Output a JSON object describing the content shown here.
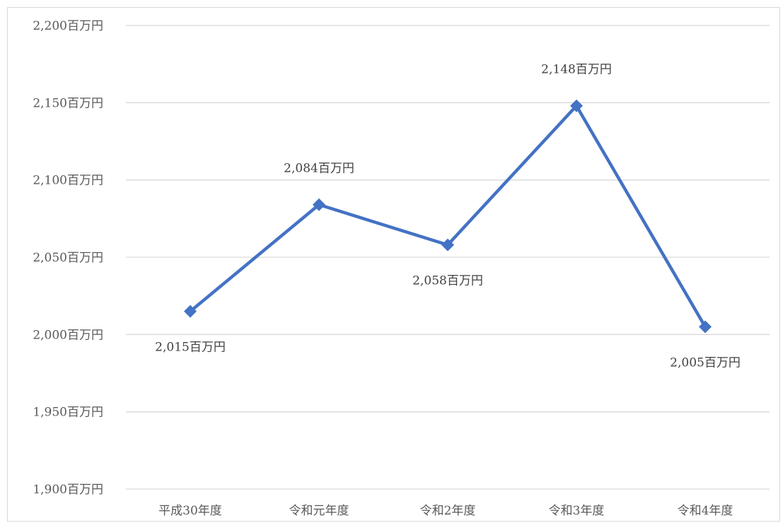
{
  "chart_data": {
    "type": "line",
    "categories": [
      "平成30年度",
      "令和元年度",
      "令和2年度",
      "令和3年度",
      "令和4年度"
    ],
    "series": [
      {
        "values": [
          2015,
          2084,
          2058,
          2148,
          2005
        ],
        "data_labels": [
          "2,015百万円",
          "2,084百万円",
          "2,058百万円",
          "2,148百万円",
          "2,005百万円"
        ],
        "label_positions": [
          "below",
          "above",
          "below",
          "above",
          "below"
        ],
        "color": "#4472c4",
        "marker": "diamond"
      }
    ],
    "ylim": [
      1900,
      2200
    ],
    "y_ticks": [
      {
        "value": 2200,
        "label": "2,200百万円"
      },
      {
        "value": 2150,
        "label": "2,150百万円"
      },
      {
        "value": 2100,
        "label": "2,100百万円"
      },
      {
        "value": 2050,
        "label": "2,050百万円"
      },
      {
        "value": 2000,
        "label": "2,000百万円"
      },
      {
        "value": 1950,
        "label": "1,950百万円"
      },
      {
        "value": 1900,
        "label": "1,900百万円"
      }
    ],
    "grid": true,
    "grid_color": "#d9d9d9",
    "legend": "none",
    "title": "",
    "xlabel": "",
    "ylabel": ""
  }
}
